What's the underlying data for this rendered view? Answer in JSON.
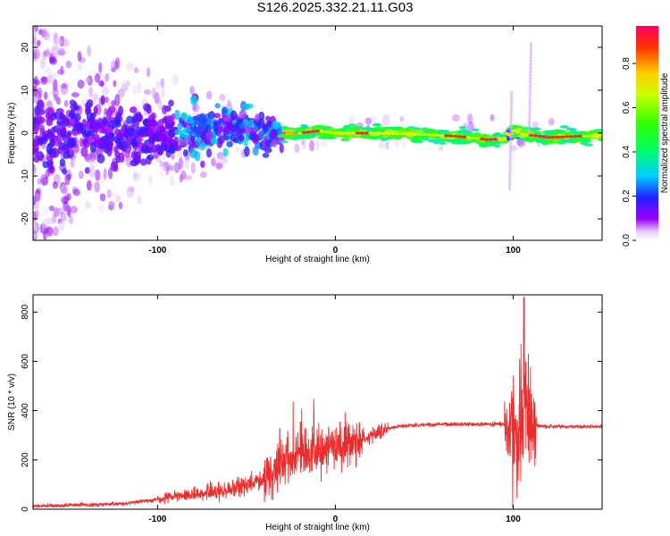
{
  "title": "S126.2025.332.21.11.G03",
  "chart_data": [
    {
      "type": "heatmap",
      "xlabel": "Height of straight line (km)",
      "ylabel": "Frequency (Hz)",
      "xlim": [
        -170,
        150
      ],
      "ylim": [
        -25,
        25
      ],
      "xticks": [
        -100,
        0,
        100
      ],
      "yticks": [
        -20,
        -10,
        0,
        10,
        20
      ],
      "ridge": [
        {
          "x": -170,
          "y": 0
        },
        {
          "x": -120,
          "y": 0
        },
        {
          "x": -80,
          "y": 0.5
        },
        {
          "x": -50,
          "y": 1
        },
        {
          "x": -30,
          "y": 0
        },
        {
          "x": -20,
          "y": 0
        },
        {
          "x": -10,
          "y": 0.5
        },
        {
          "x": 0,
          "y": 0
        },
        {
          "x": 20,
          "y": 0
        },
        {
          "x": 50,
          "y": -0.3
        },
        {
          "x": 70,
          "y": -0.8
        },
        {
          "x": 85,
          "y": -1.5
        },
        {
          "x": 95,
          "y": -1.3
        },
        {
          "x": 100,
          "y": 0.5
        },
        {
          "x": 105,
          "y": -0.2
        },
        {
          "x": 120,
          "y": -1
        },
        {
          "x": 150,
          "y": -0.5
        }
      ],
      "colorbar": {
        "label": "Normalized spectral amplitude",
        "ticks": [
          "0.0",
          "0.2",
          "0.4",
          "0.6",
          "0.8"
        ],
        "range": [
          0,
          0.97
        ]
      }
    },
    {
      "type": "line",
      "xlabel": "Height of straight line (km)",
      "ylabel": "SNR (10 * v/v)",
      "xlim": [
        -170,
        150
      ],
      "ylim": [
        0,
        870
      ],
      "xticks": [
        -100,
        0,
        100
      ],
      "yticks": [
        0,
        200,
        400,
        600,
        800
      ],
      "color": "#ee2c2c",
      "trend": [
        {
          "x": -170,
          "y": 12
        },
        {
          "x": -120,
          "y": 22
        },
        {
          "x": -100,
          "y": 40
        },
        {
          "x": -80,
          "y": 60
        },
        {
          "x": -60,
          "y": 80
        },
        {
          "x": -40,
          "y": 120
        },
        {
          "x": -30,
          "y": 180
        },
        {
          "x": -20,
          "y": 220
        },
        {
          "x": -10,
          "y": 240
        },
        {
          "x": 0,
          "y": 250
        },
        {
          "x": 10,
          "y": 270
        },
        {
          "x": 20,
          "y": 300
        },
        {
          "x": 30,
          "y": 330
        },
        {
          "x": 40,
          "y": 340
        },
        {
          "x": 60,
          "y": 345
        },
        {
          "x": 80,
          "y": 345
        },
        {
          "x": 95,
          "y": 345
        },
        {
          "x": 110,
          "y": 340
        },
        {
          "x": 120,
          "y": 335
        },
        {
          "x": 150,
          "y": 335
        }
      ],
      "peak": {
        "x": 106,
        "y": 860
      }
    }
  ]
}
